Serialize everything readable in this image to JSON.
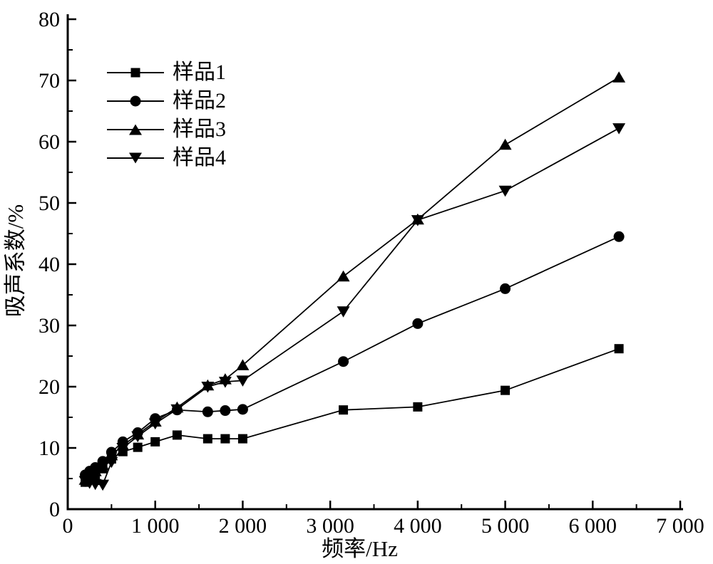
{
  "figure": {
    "background": "#ffffff",
    "axis_color": "#000000",
    "series_color": "#000000"
  },
  "chart_data": {
    "type": "line",
    "title": "",
    "xlabel": "频率/Hz",
    "ylabel": "吸声系数/%",
    "xlim": [
      0,
      7000
    ],
    "ylim": [
      0,
      80
    ],
    "grid": false,
    "legend_position": "top-left-inside",
    "x_major_ticks": [
      0,
      1000,
      2000,
      3000,
      4000,
      5000,
      6000,
      7000
    ],
    "x_tick_labels": [
      "0",
      "1 000",
      "2 000",
      "3 000",
      "4 000",
      "5 000",
      "6 000",
      "7 000"
    ],
    "x_minor_step": 500,
    "y_major_ticks": [
      0,
      10,
      20,
      30,
      40,
      50,
      60,
      70,
      80
    ],
    "y_tick_labels": [
      "0",
      "10",
      "20",
      "30",
      "40",
      "50",
      "60",
      "70",
      "80"
    ],
    "y_minor_step": 5,
    "x": [
      200,
      250,
      315,
      400,
      500,
      630,
      800,
      1000,
      1250,
      1600,
      1800,
      2000,
      3150,
      4000,
      5000,
      6300
    ],
    "series": [
      {
        "name": "样品1",
        "marker": "square",
        "values": [
          4.4,
          4.8,
          5.6,
          6.6,
          8.2,
          9.4,
          10.1,
          11.0,
          12.1,
          11.5,
          11.5,
          11.5,
          16.2,
          16.7,
          19.4,
          26.2
        ]
      },
      {
        "name": "样品2",
        "marker": "circle",
        "values": [
          5.6,
          6.2,
          6.8,
          7.8,
          9.3,
          11.0,
          12.5,
          14.8,
          16.2,
          15.9,
          16.1,
          16.3,
          24.1,
          30.3,
          36.0,
          44.5
        ]
      },
      {
        "name": "样品3",
        "marker": "triangle-up",
        "values": [
          4.8,
          5.4,
          6.2,
          7.2,
          8.8,
          10.4,
          12.2,
          14.3,
          16.6,
          20.2,
          21.2,
          23.5,
          38.0,
          47.3,
          59.5,
          70.5
        ]
      },
      {
        "name": "样品4",
        "marker": "triangle-down",
        "values": [
          4.6,
          4.3,
          4.1,
          4.0,
          7.7,
          10.0,
          11.9,
          14.0,
          16.3,
          20.0,
          20.8,
          21.0,
          32.3,
          47.2,
          52.0,
          62.2
        ]
      }
    ]
  }
}
